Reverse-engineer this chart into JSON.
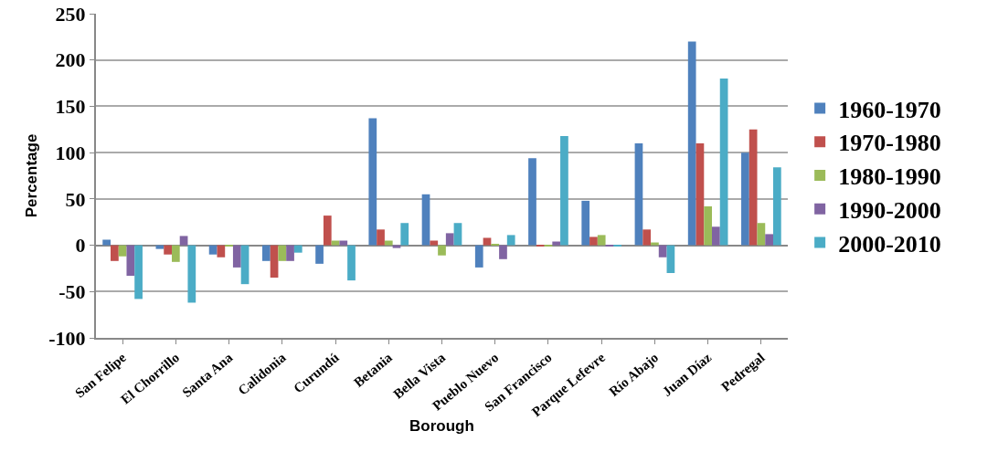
{
  "chart_data": {
    "type": "bar",
    "xlabel": "Borough",
    "ylabel": "Percentage",
    "categories": [
      "San Felipe",
      "El Chorrillo",
      "Santa Ana",
      "Calidonia",
      "Curundú",
      "Betania",
      "Bella Vista",
      "Pueblo Nuevo",
      "San Francisco",
      "Parque Lefevre",
      "Río Abajo",
      "Juan Díaz",
      "Pedregal"
    ],
    "series": [
      {
        "name": "1960-1970",
        "color": "#4f81bd",
        "values": [
          6,
          -4,
          -10,
          -17,
          -20,
          137,
          55,
          -24,
          94,
          48,
          110,
          220,
          100
        ]
      },
      {
        "name": "1970-1980",
        "color": "#c0504d",
        "values": [
          -17,
          -10,
          -13,
          -35,
          32,
          17,
          5,
          8,
          -1,
          9,
          17,
          110,
          125
        ]
      },
      {
        "name": "1980-1990",
        "color": "#9bbb59",
        "values": [
          -12,
          -18,
          -1,
          -17,
          5,
          5,
          -11,
          1,
          -1,
          11,
          3,
          42,
          24
        ]
      },
      {
        "name": "1990-2000",
        "color": "#8064a2",
        "values": [
          -33,
          10,
          -24,
          -17,
          5,
          -3,
          13,
          -15,
          4,
          -1,
          -13,
          20,
          12
        ]
      },
      {
        "name": "2000-2010",
        "color": "#4bacc6",
        "values": [
          -58,
          -62,
          -42,
          -8,
          -38,
          24,
          24,
          11,
          118,
          -1,
          -30,
          180,
          84
        ]
      }
    ],
    "ylim": [
      -100,
      250
    ],
    "yticks": [
      -100,
      -50,
      0,
      50,
      100,
      150,
      200,
      250
    ],
    "grid": "y",
    "legend": "right"
  }
}
